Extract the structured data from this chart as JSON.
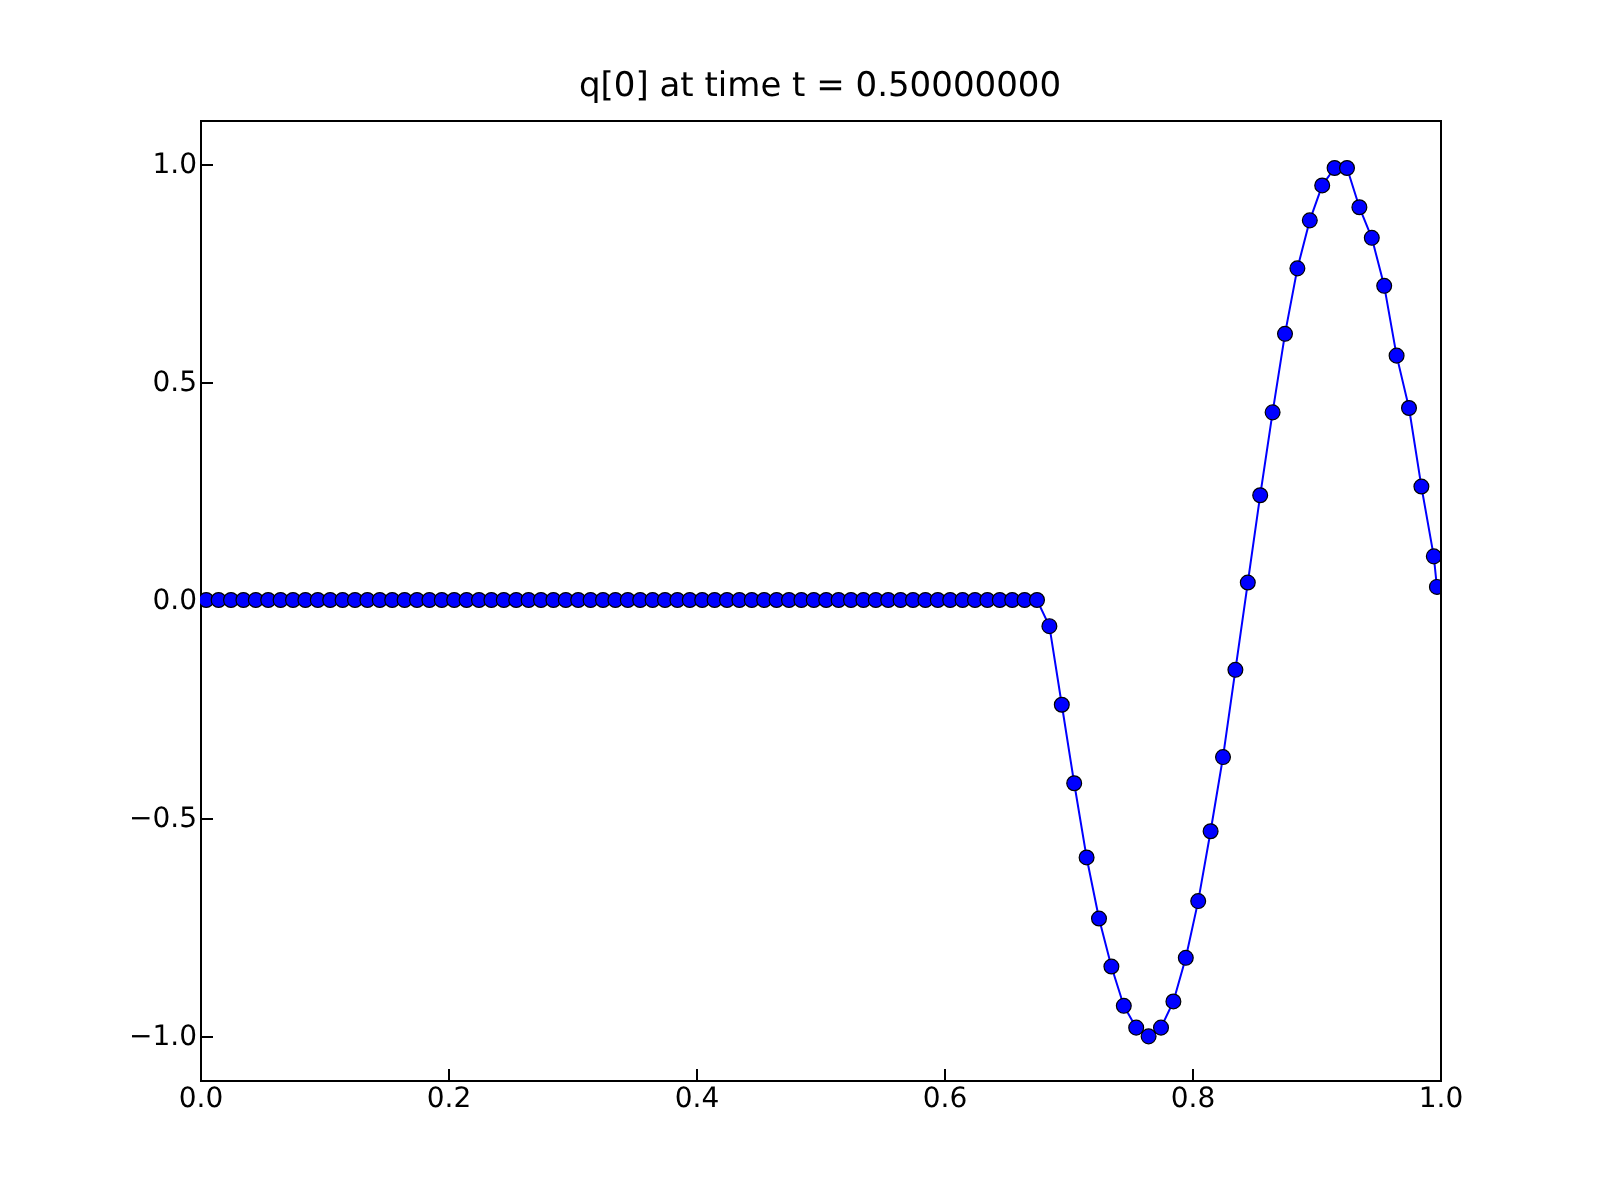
{
  "chart_data": {
    "type": "line",
    "title": "q[0] at time t =     0.50000000",
    "x": [
      0.005,
      0.015,
      0.025,
      0.035,
      0.045,
      0.055,
      0.065,
      0.075,
      0.085,
      0.095,
      0.105,
      0.115,
      0.125,
      0.135,
      0.145,
      0.155,
      0.165,
      0.175,
      0.185,
      0.195,
      0.205,
      0.215,
      0.225,
      0.235,
      0.245,
      0.255,
      0.265,
      0.275,
      0.285,
      0.295,
      0.305,
      0.315,
      0.325,
      0.335,
      0.345,
      0.355,
      0.365,
      0.375,
      0.385,
      0.395,
      0.405,
      0.415,
      0.425,
      0.435,
      0.445,
      0.455,
      0.465,
      0.475,
      0.485,
      0.495,
      0.505,
      0.515,
      0.525,
      0.535,
      0.545,
      0.555,
      0.565,
      0.575,
      0.585,
      0.595,
      0.605,
      0.615,
      0.625,
      0.635,
      0.645,
      0.655,
      0.665,
      0.675,
      0.685,
      0.695,
      0.705,
      0.715,
      0.725,
      0.735,
      0.745,
      0.755,
      0.765,
      0.775,
      0.785,
      0.795,
      0.805,
      0.815,
      0.825,
      0.835,
      0.845,
      0.855,
      0.865,
      0.875,
      0.885,
      0.895,
      0.905,
      0.915,
      0.925,
      0.935,
      0.945,
      0.955,
      0.965,
      0.975,
      0.985,
      0.995,
      0.9975
    ],
    "series": [
      {
        "color": "#0000ff",
        "values": [
          0,
          0,
          0,
          0,
          0,
          0,
          0,
          0,
          0,
          0,
          0,
          0,
          0,
          0,
          0,
          0,
          0,
          0,
          0,
          0,
          0,
          0,
          0,
          0,
          0,
          0,
          0,
          0,
          0,
          0,
          0,
          0,
          0,
          0,
          0,
          0,
          0,
          0,
          0,
          0,
          0,
          0,
          0,
          0,
          0,
          0,
          0,
          0,
          0,
          0,
          0,
          0,
          0,
          0,
          0,
          0,
          0,
          0,
          0,
          0,
          0,
          0,
          0,
          0,
          0,
          0,
          0,
          0,
          -0.06,
          -0.24,
          -0.42,
          -0.59,
          -0.73,
          -0.84,
          -0.93,
          -0.98,
          -1.0,
          -0.98,
          -0.92,
          -0.82,
          -0.69,
          -0.53,
          -0.36,
          -0.16,
          0.04,
          0.24,
          0.43,
          0.61,
          0.76,
          0.87,
          0.95,
          0.99,
          0.99,
          0.9,
          0.83,
          0.72,
          0.56,
          0.44,
          0.26,
          0.1,
          0.03
        ]
      }
    ],
    "xlim": [
      0,
      1
    ],
    "ylim": [
      -1.1,
      1.1
    ],
    "xticks": [
      {
        "value": 0,
        "label": "0.0"
      },
      {
        "value": 0.2,
        "label": "0.2"
      },
      {
        "value": 0.4,
        "label": "0.4"
      },
      {
        "value": 0.6,
        "label": "0.6"
      },
      {
        "value": 0.8,
        "label": "0.8"
      },
      {
        "value": 1,
        "label": "1.0"
      }
    ],
    "yticks": [
      {
        "value": -1,
        "label": "−1.0"
      },
      {
        "value": -0.5,
        "label": "−0.5"
      },
      {
        "value": 0,
        "label": "0.0"
      },
      {
        "value": 0.5,
        "label": "0.5"
      },
      {
        "value": 1,
        "label": "1.0"
      }
    ],
    "marker": "circle",
    "line_style": "solid"
  }
}
